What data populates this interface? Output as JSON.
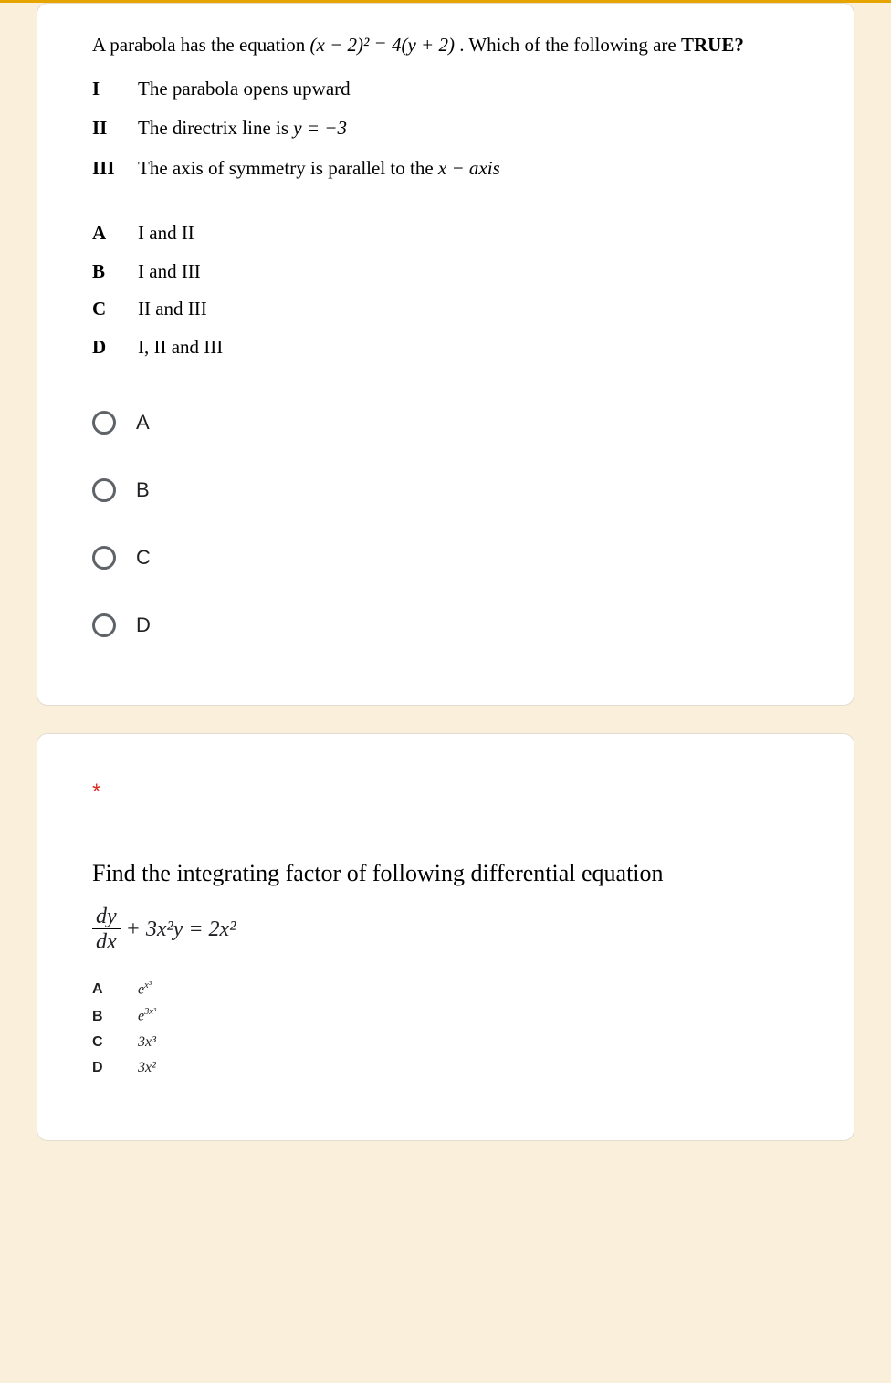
{
  "colors": {
    "page_background": "#f9efdb",
    "card_background": "#ffffff",
    "card_border": "#e3ddcf",
    "top_bar": "#e6a400",
    "text": "#000000",
    "radio_border": "#5f6368",
    "required_star": "#d93025"
  },
  "q1": {
    "stem_pre": "A parabola has the equation ",
    "stem_eq": "(x − 2)² = 4(y + 2)",
    "stem_post": ". Which of the following are ",
    "stem_bold": "TRUE?",
    "statements": [
      {
        "num": "I",
        "text": "The parabola opens upward"
      },
      {
        "num": "II",
        "text_pre": "The directrix line is ",
        "math": "y = −3"
      },
      {
        "num": "III",
        "text_pre": "The axis of symmetry is parallel to the ",
        "math2": "x − axis"
      }
    ],
    "answers": [
      {
        "letter": "A",
        "text": "I and II"
      },
      {
        "letter": "B",
        "text": "I and III"
      },
      {
        "letter": "C",
        "text": "II and III"
      },
      {
        "letter": "D",
        "text": "I, II and III"
      }
    ],
    "options": [
      {
        "label": "A"
      },
      {
        "label": "B"
      },
      {
        "label": "C"
      },
      {
        "label": "D"
      }
    ]
  },
  "q2": {
    "required": "*",
    "title": "Find the integrating factor of following differential equation",
    "frac_num": "dy",
    "frac_den": "dx",
    "eq_rest": "+ 3x²y = 2x²",
    "answers": [
      {
        "letter": "A",
        "html": "e<sup>x³</sup>"
      },
      {
        "letter": "B",
        "html": "e<sup>3x³</sup>"
      },
      {
        "letter": "C",
        "html": "3x³"
      },
      {
        "letter": "D",
        "html": "3x²"
      }
    ]
  }
}
